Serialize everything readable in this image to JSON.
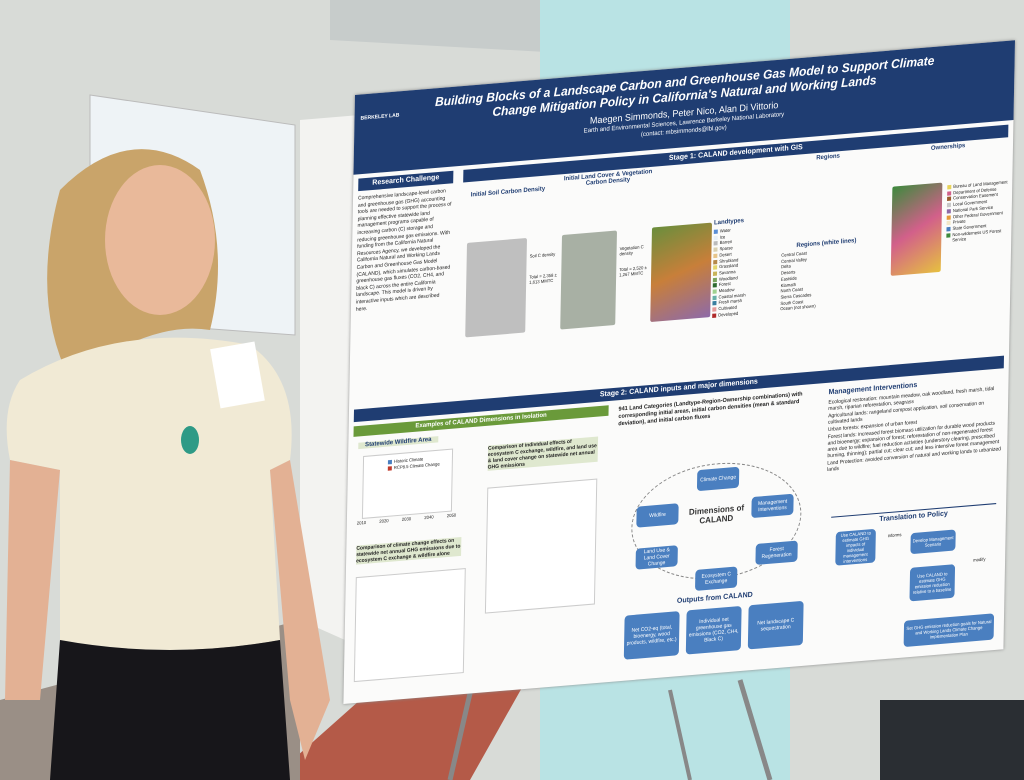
{
  "poster": {
    "title": "Building Blocks of a Landscape Carbon and Greenhouse Gas Model to Support Climate Change Mitigation Policy in California's Natural and Working Lands",
    "authors": "Maegen Simmonds, Peter Nico, Alan Di Vittorio",
    "affiliation": "Earth and Environmental Sciences, Lawrence Berkeley National Laboratory",
    "contact": "(contact: mbsimmonds@lbl.gov)",
    "logo": "BERKELEY LAB",
    "stage1": "Stage 1: CALAND development with GIS",
    "stage2": "Stage 2: CALAND inputs and major dimensions",
    "research_challenge": {
      "heading": "Research Challenge",
      "body": "Comprehensive landscape-level carbon and greenhouse gas (GHG) accounting tools are needed to support the process of planning effective statewide land management programs capable of increasing carbon (C) storage and reducing greenhouse gas emissions. With funding from the California Natural Resources Agency, we developed the California Natural and Working Lands Carbon and Greenhouse Gas Model (CALAND), which simulates carbon-based greenhouse gas fluxes (CO2, CH4, and black C) across the entire California landscape. This model is driven by interactive inputs which are described here."
    },
    "soil": {
      "heading": "Initial Soil Carbon Density",
      "map_label": "Soil C density",
      "total": "Total = 2,358 ± 1,613 MMTC"
    },
    "vegetation": {
      "heading": "Initial Land Cover & Vegetation Carbon Density",
      "map_label": "Vegetation C density",
      "total": "Total = 2,520 ± 1,267 MMTC"
    },
    "landtypes": {
      "heading": "Landtypes",
      "items": [
        "Water",
        "Ice",
        "Barren",
        "Sparse",
        "Desert",
        "Shrubland",
        "Grassland",
        "Savanna",
        "Woodland",
        "Forest",
        "Meadow",
        "Coastal marsh",
        "Fresh marsh",
        "Cultivated",
        "Developed"
      ]
    },
    "regions": {
      "heading": "Regions",
      "list_heading": "Regions (white lines)",
      "items": [
        "Central Coast",
        "Central Valley",
        "Delta",
        "Deserts",
        "Eastside",
        "Klamath",
        "North Coast",
        "Sierra Cascades",
        "South Coast",
        "Ocean (not shown)"
      ]
    },
    "ownerships": {
      "heading": "Ownerships",
      "items": [
        "Bureau of Land Management",
        "Department of Defense",
        "Conservation Easement",
        "Local Government",
        "National Park Service",
        "Other Federal Government",
        "Private",
        "State Government",
        "Non-wilderness US Forest Service"
      ]
    },
    "examples_heading": "Examples of CALAND Dimensions in Isolation",
    "wildfire": {
      "heading": "Statewide Wildfire Area",
      "legend": [
        "Historic Climate",
        "RCP8.5 Climate Change"
      ],
      "xticks": [
        "2010",
        "2020",
        "2030",
        "2040",
        "2050"
      ]
    },
    "ecosystem_heading": "Comparison of individual effects of ecosystem C exchange, wildfire, and land use & land cover change on statewide net annual GHG emissions",
    "ghg_heading": "Comparison of climate change effects on statewide net annual GHG emissions due to ecosystem C exchange & wildfire alone",
    "land_categories": "941 Land Categories (Landtype-Region-Ownership combinations) with corresponding initial areas, initial carbon densities (mean & standard deviation), and initial carbon fluxes",
    "dimensions": {
      "center": "Dimensions of CALAND",
      "items": [
        "Climate Change",
        "Wildfire",
        "Management Interventions",
        "Land Use & Land Cover Change",
        "Forest Regeneration",
        "Ecosystem C Exchange"
      ]
    },
    "outputs": {
      "heading": "Outputs from CALAND",
      "items": [
        "Net CO2-eq (total, bioenergy, wood products, wildfire, etc.)",
        "Individual net greenhouse gas emissions (CO2, CH4, Black C)",
        "Net landscape C sequestration"
      ]
    },
    "management": {
      "heading": "Management Interventions",
      "items": [
        "Ecological restoration: mountain meadow, oak woodland, fresh marsh, tidal marsh, riparian reforestation, seagrass",
        "Agricultural lands: rangeland compost application, soil conservation on cultivated lands",
        "Urban forests: expansion of urban forest",
        "Forest lands: increased forest biomass utilization for durable wood products and bioenergy; expansion of forest; reforestation of non-regenerated forest area due to wildfire; fuel reduction activities (understory clearing, prescribed burning, thinning); partial cut; clear cut; and less intensive forest management",
        "Land Protection: avoided conversion of natural and working lands to urbanized lands"
      ]
    },
    "translation": {
      "heading": "Translation to Policy",
      "steps": [
        "Use CALAND to estimate GHG impacts of individual management interventions",
        "Develop Management Scenario",
        "Use CALAND to estimate GHG emission reduction relative to a baseline",
        "Set GHG emission reduction goals for Natural and Working Lands Climate Change Implementation Plan"
      ],
      "informs": "informs",
      "modify": "modify"
    }
  }
}
